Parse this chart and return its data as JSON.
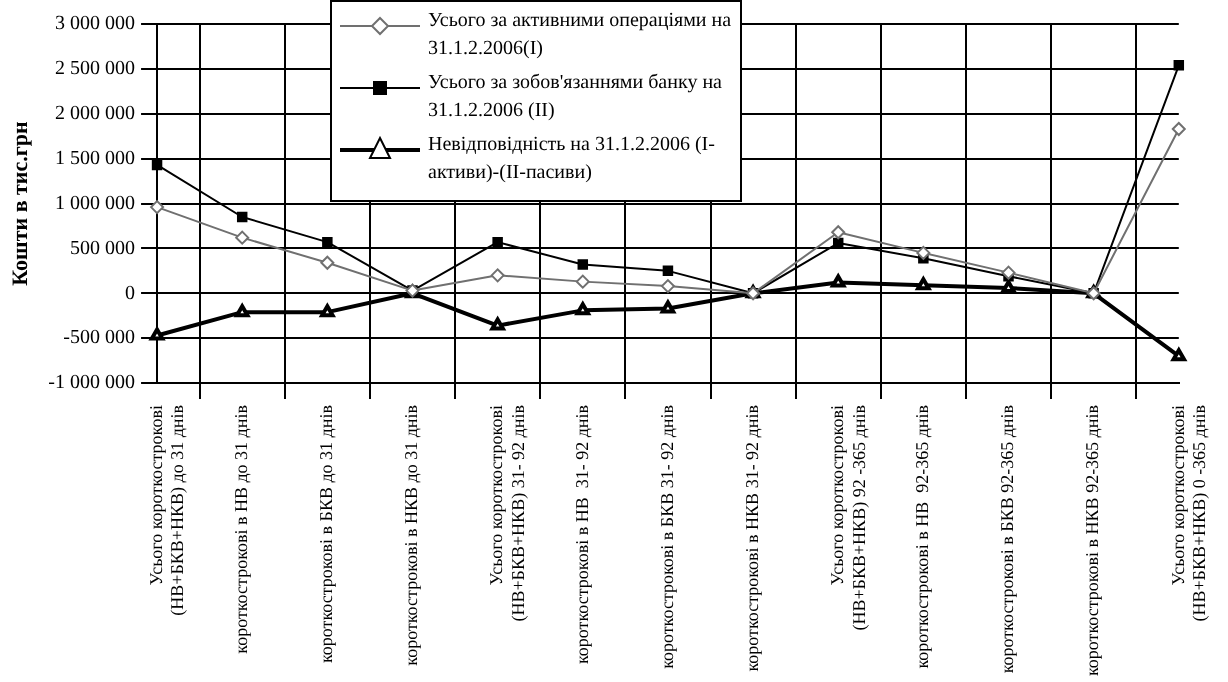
{
  "chart_data": {
    "type": "line",
    "ylabel": "Кошти в тис.грн",
    "categories": [
      "Усього короткострокові\n(НВ+БКВ+НКВ) до 31 днів",
      "короткострокові в НВ до 31 днів",
      "короткострокові в БКВ до 31 днів",
      "короткострокові в НКВ до 31 днів",
      "Усього короткострокові\n(НВ+БКВ+НКВ) 31- 92 днів",
      "короткострокові в НВ  31- 92 днів",
      "короткострокові в БКВ 31- 92 днів",
      "короткострокові в НКВ 31- 92 днів",
      "Усього короткострокові\n(НВ+БКВ+НКВ) 92 -365 днів",
      "короткострокові в НВ  92-365 днів",
      "короткострокові в БКВ 92-365 днів",
      "короткострокові в НКВ 92-365 днів",
      "Усього короткострокові\n(НВ+БКВ+НКВ) 0 -365 днів"
    ],
    "series": [
      {
        "name": "Усього за активними операціями на 31.1.2.2006(I)",
        "color": "#707070",
        "marker": "diamond",
        "values": [
          960000,
          620000,
          340000,
          30000,
          200000,
          130000,
          80000,
          0,
          680000,
          450000,
          230000,
          0,
          1830000
        ]
      },
      {
        "name": "Усього за зобов'язаннями банку на 31.1.2.2006 (II)",
        "color": "#000000",
        "marker": "square",
        "values": [
          1430000,
          850000,
          570000,
          30000,
          570000,
          320000,
          250000,
          0,
          560000,
          390000,
          190000,
          0,
          2540000
        ]
      },
      {
        "name": "Невідповідність на 31.1.2.2006 (I- активи)-(II-пасиви)",
        "color": "#000000",
        "marker": "triangle",
        "values": [
          -470000,
          -210000,
          -210000,
          0,
          -360000,
          -190000,
          -170000,
          0,
          120000,
          90000,
          60000,
          0,
          -700000
        ]
      }
    ],
    "ylim": [
      -1000000,
      3000000
    ],
    "yticks": [
      {
        "value": -1000000,
        "label": "-1 000 000"
      },
      {
        "value": -500000,
        "label": "-500 000"
      },
      {
        "value": 0,
        "label": "0"
      },
      {
        "value": 500000,
        "label": "500 000"
      },
      {
        "value": 1000000,
        "label": "1 000 000"
      },
      {
        "value": 1500000,
        "label": "1 500 000"
      },
      {
        "value": 2000000,
        "label": "2 000 000"
      },
      {
        "value": 2500000,
        "label": "2 500 000"
      },
      {
        "value": 3000000,
        "label": "3 000 000"
      }
    ],
    "grid": true,
    "legend": "top"
  }
}
